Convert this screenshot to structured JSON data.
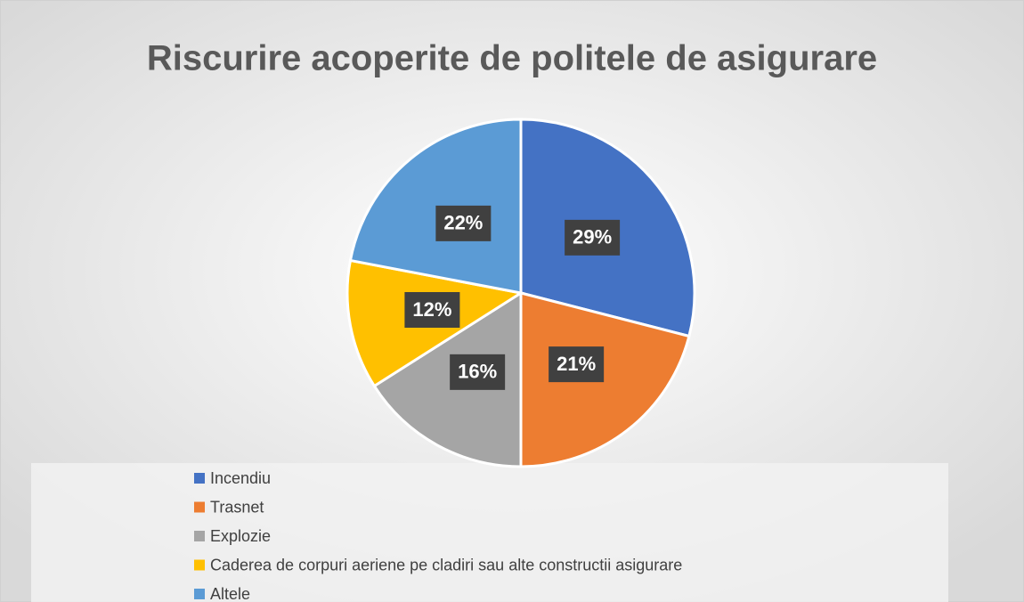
{
  "chart_data": {
    "type": "pie",
    "title": "Riscurire acoperite de politele de asigurare",
    "categories": [
      "Incendiu",
      "Trasnet",
      "Explozie",
      "Caderea de corpuri aeriene pe cladiri sau alte constructii asigurare",
      "Altele"
    ],
    "values": [
      29,
      21,
      16,
      12,
      22
    ],
    "value_labels": [
      "29%",
      "21%",
      "16%",
      "12%",
      "22%"
    ],
    "colors": [
      "#4472c4",
      "#ed7d31",
      "#a5a5a5",
      "#ffc000",
      "#5b9bd5"
    ],
    "legend": "bottom"
  }
}
